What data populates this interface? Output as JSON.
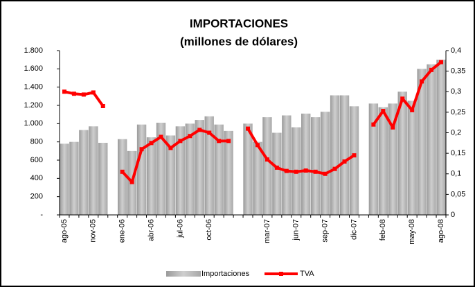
{
  "chart_data": {
    "type": "combo",
    "title": "IMPORTACIONES",
    "subtitle": "(millones  de dólares)",
    "categories": [
      "ago-05",
      null,
      null,
      "nov-05",
      null,
      null,
      "ene-06",
      null,
      null,
      "abr-06",
      null,
      null,
      "jul-06",
      null,
      null,
      "oct-06",
      null,
      null,
      null,
      null,
      null,
      "mar-07",
      null,
      null,
      "jun-07",
      null,
      null,
      "sep-07",
      null,
      null,
      "dic-07",
      null,
      null,
      "feb-08",
      null,
      null,
      "may-08",
      null,
      null,
      "ago-08"
    ],
    "series": [
      {
        "name": "Importaciones",
        "type": "bar",
        "color": "#b3b3b3",
        "values": [
          780,
          800,
          930,
          970,
          790,
          null,
          830,
          700,
          990,
          850,
          1010,
          870,
          970,
          1000,
          1040,
          1080,
          990,
          920,
          null,
          1000,
          800,
          1070,
          900,
          1090,
          960,
          1110,
          1070,
          1130,
          1310,
          1310,
          1190,
          null,
          1220,
          1180,
          1220,
          1350,
          1250,
          1600,
          1650,
          1700
        ]
      },
      {
        "name": "TVA",
        "type": "line",
        "axis": "y2",
        "color": "#ff0000",
        "values": [
          0.3,
          0.295,
          0.293,
          0.298,
          0.265,
          null,
          0.105,
          0.08,
          0.16,
          0.175,
          0.19,
          0.163,
          0.18,
          0.192,
          0.207,
          0.2,
          0.18,
          0.18,
          null,
          0.21,
          0.17,
          0.135,
          0.115,
          0.107,
          0.105,
          0.108,
          0.105,
          0.1,
          0.112,
          0.13,
          0.145,
          null,
          0.22,
          0.253,
          0.213,
          0.283,
          0.255,
          0.325,
          0.353,
          0.372
        ]
      }
    ],
    "ylim": [
      0,
      1800
    ],
    "yticks": [
      {
        "value": 0,
        "label": "-"
      },
      200,
      400,
      600,
      800,
      {
        "value": 1000,
        "label": "1.000"
      },
      {
        "value": 1200,
        "label": "1.200"
      },
      {
        "value": 1400,
        "label": "1.400"
      },
      {
        "value": 1600,
        "label": "1.600"
      },
      {
        "value": 1800,
        "label": "1.800"
      }
    ],
    "y2lim": [
      0,
      0.4
    ],
    "y2ticks": [
      0,
      {
        "value": 0.05,
        "label": "0,05"
      },
      {
        "value": 0.1,
        "label": "0,1"
      },
      {
        "value": 0.15,
        "label": "0,15"
      },
      {
        "value": 0.2,
        "label": "0,2"
      },
      {
        "value": 0.25,
        "label": "0,25"
      },
      {
        "value": 0.3,
        "label": "0,3"
      },
      {
        "value": 0.35,
        "label": "0,35"
      },
      {
        "value": 0.4,
        "label": "0,4"
      }
    ],
    "legend": "bottom"
  }
}
